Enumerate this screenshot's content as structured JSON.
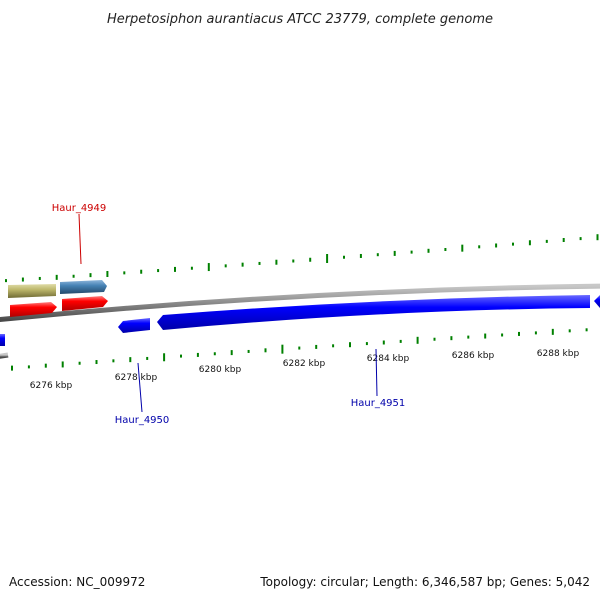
{
  "title": "Herpetosiphon aurantiacus ATCC 23779, complete genome",
  "footer": {
    "accession": "Accession: NC_009972",
    "summary": "Topology: circular; Length: 6,346,587 bp; Genes: 5,042"
  },
  "ticks": [
    "6276 kbp",
    "6278 kbp",
    "6280 kbp",
    "6282 kbp",
    "6284 kbp",
    "6286 kbp",
    "6288 kbp"
  ],
  "gene_labels": [
    {
      "text": "Haur_4949",
      "color": "#cc0000"
    },
    {
      "text": "Haur_4950",
      "color": "#0000aa"
    },
    {
      "text": "Haur_4951",
      "color": "#0000aa"
    }
  ],
  "colors": {
    "forward_cds": "#ff0000",
    "reverse_cds": "#0000ff",
    "gene_olive": "#bdb76b",
    "gene_steelblue": "#4682b4",
    "backbone": "#808080",
    "gc_tick": "#008000"
  }
}
